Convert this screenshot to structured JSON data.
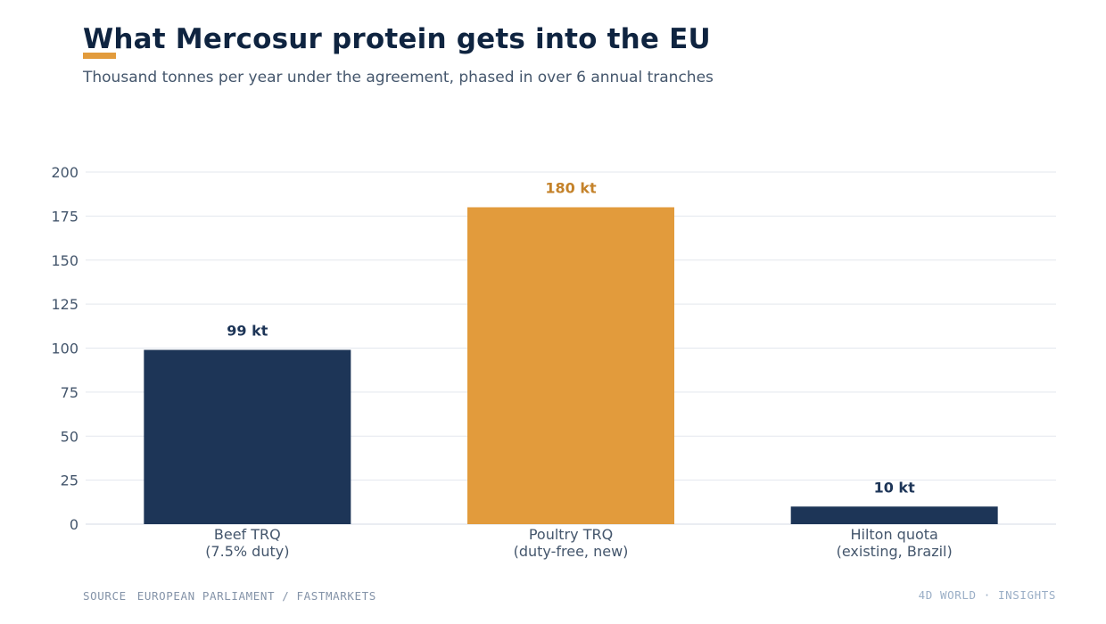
{
  "header": {
    "title": "What Mercosur protein gets into the EU",
    "subtitle": "Thousand tonnes per year under the agreement, phased in over 6 annual tranches"
  },
  "footer": {
    "source_label": "SOURCE",
    "source_text": "EUROPEAN PARLIAMENT / FASTMARKETS",
    "brand": "4D WORLD · INSIGHTS"
  },
  "colors": {
    "navy": "#1d3557",
    "orange": "#e29b3c",
    "orange_label": "#c4822a",
    "grid": "#e3e7ee",
    "text": "#44566c"
  },
  "chart_data": {
    "type": "bar",
    "categories": [
      [
        "Beef TRQ",
        "(7.5% duty)"
      ],
      [
        "Poultry TRQ",
        "(duty-free, new)"
      ],
      [
        "Hilton quota",
        "(existing, Brazil)"
      ]
    ],
    "values": [
      99,
      180,
      10
    ],
    "data_labels": [
      "99 kt",
      "180 kt",
      "10 kt"
    ],
    "bar_colors": [
      "#1d3557",
      "#e29b3c",
      "#1d3557"
    ],
    "label_colors": [
      "#1d3557",
      "#c4822a",
      "#1d3557"
    ],
    "ylim": [
      0,
      200
    ],
    "yticks": [
      0,
      25,
      50,
      75,
      100,
      125,
      150,
      175,
      200
    ],
    "grid": true,
    "legend": "none"
  }
}
